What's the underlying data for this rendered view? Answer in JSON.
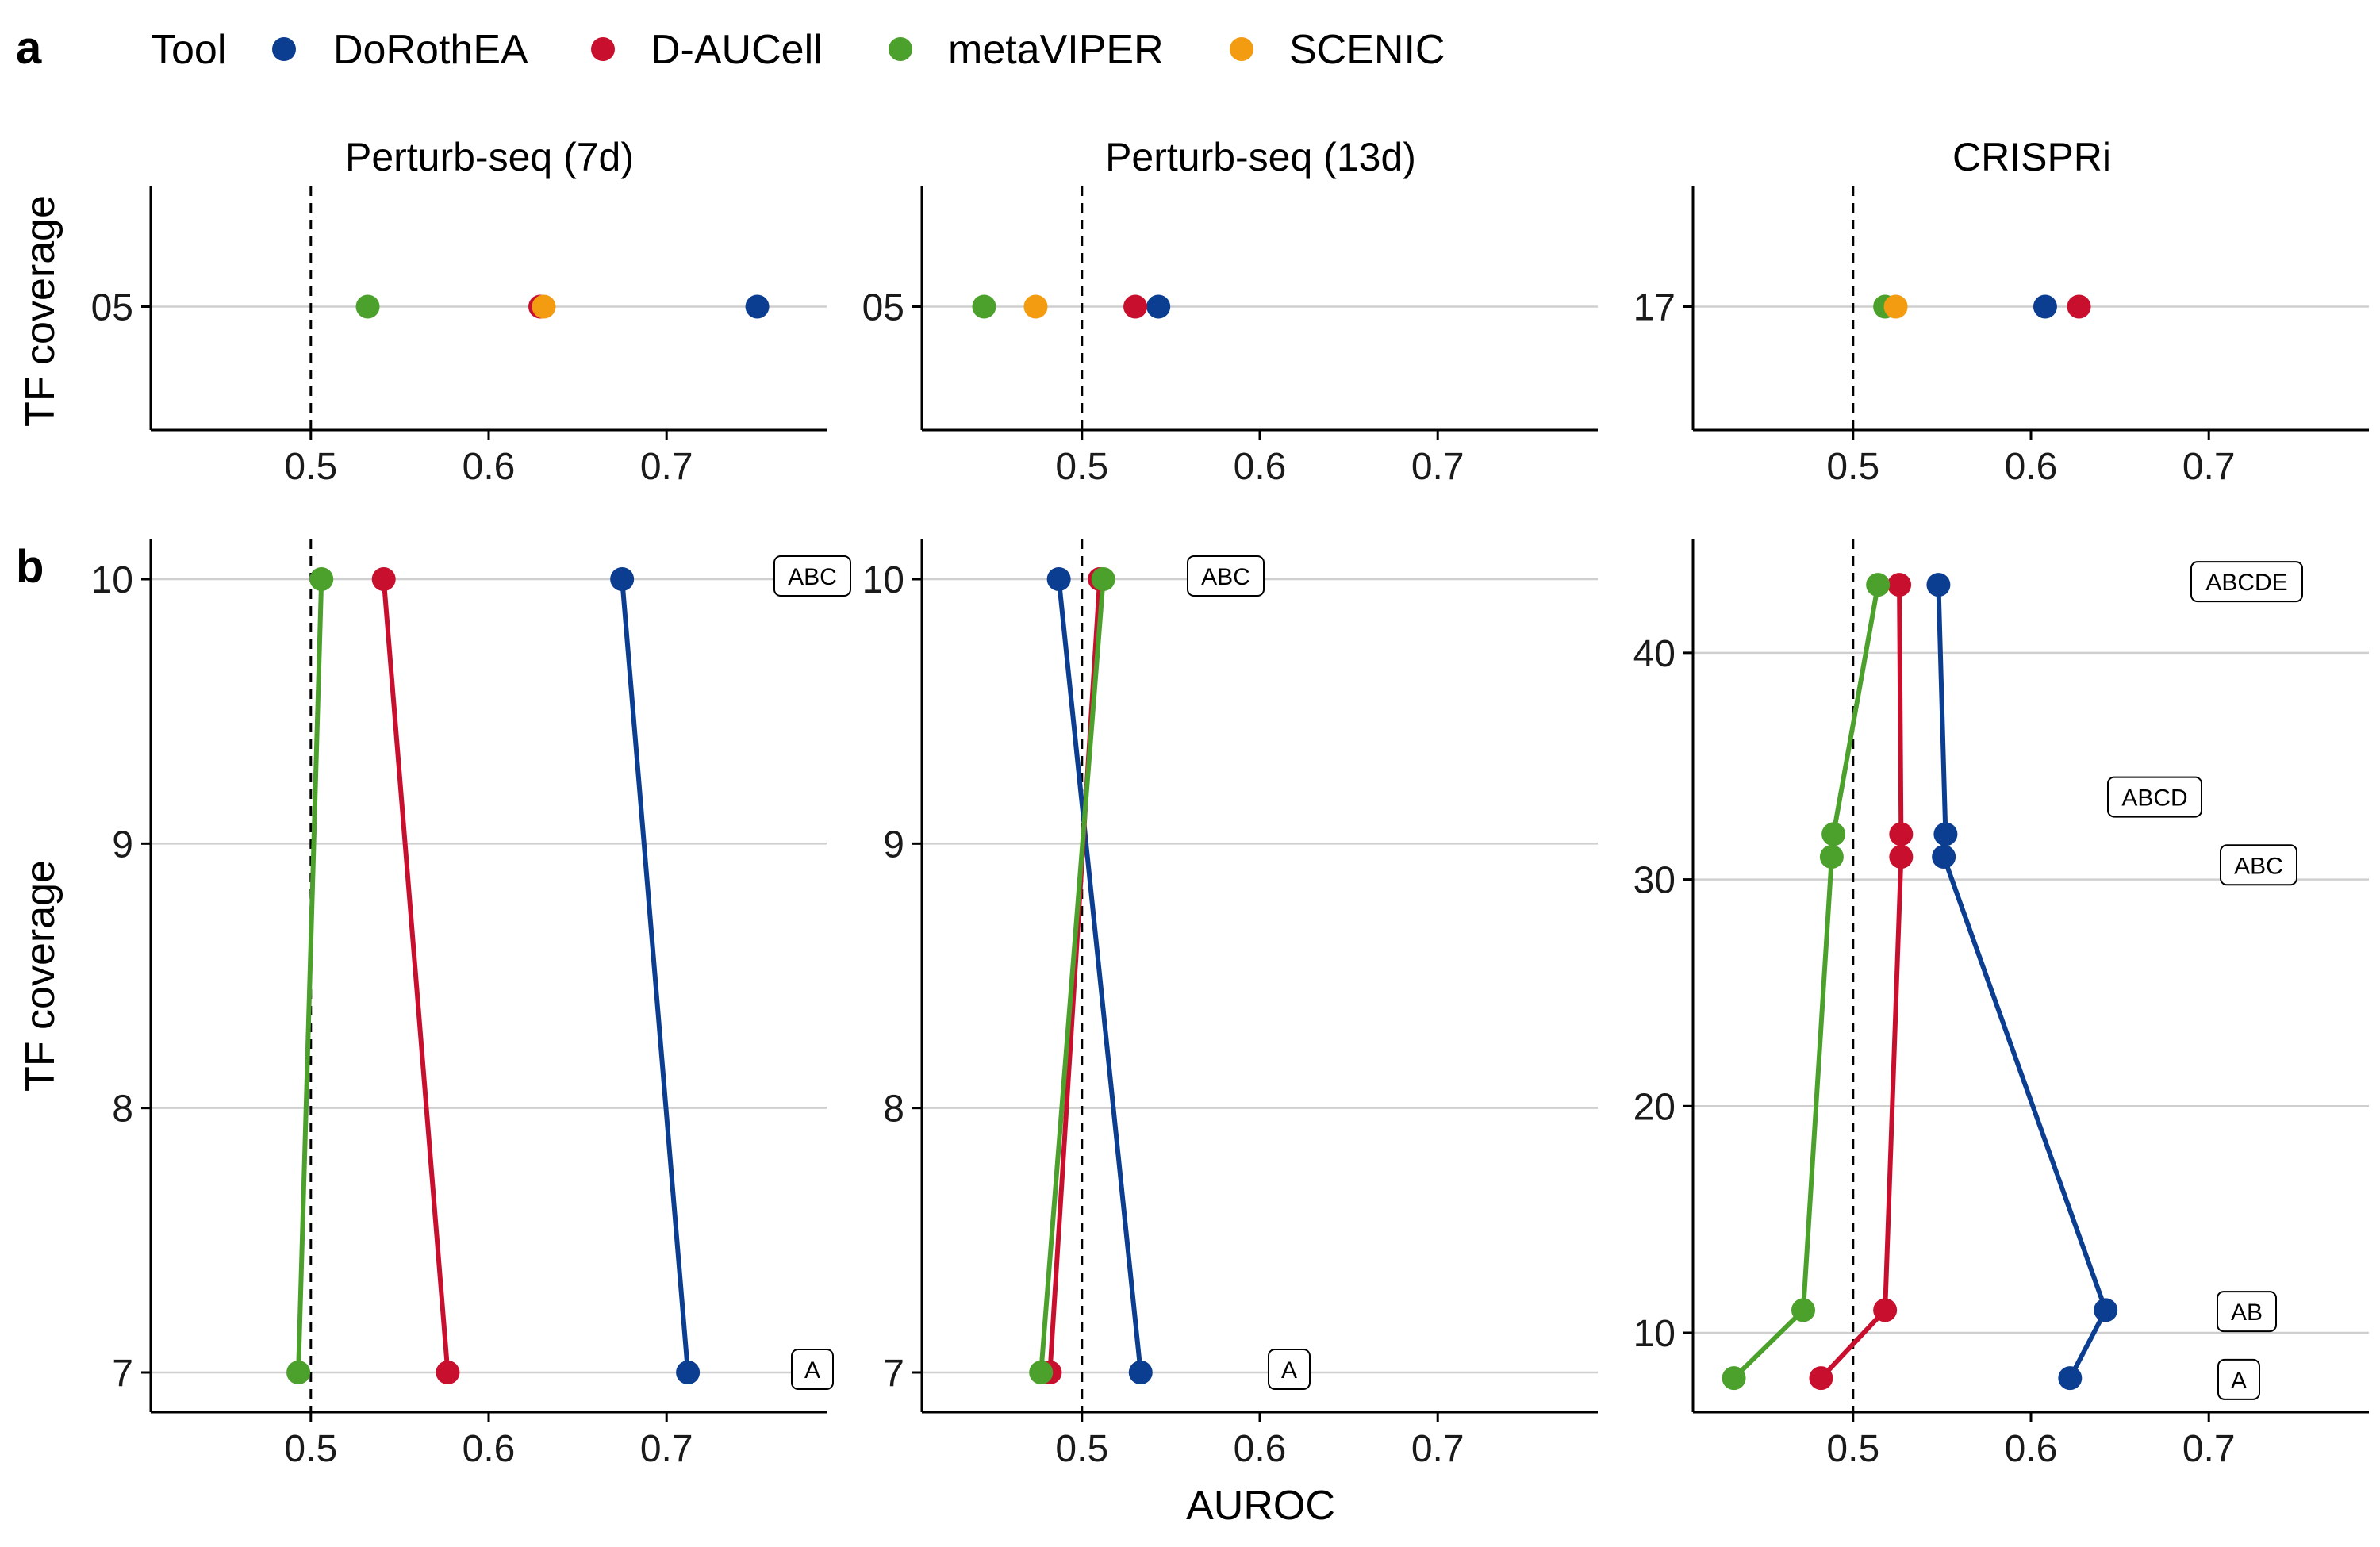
{
  "panel_labels": {
    "a": "a",
    "b": "b"
  },
  "legend": {
    "title": "Tool",
    "items": [
      {
        "name": "DoRothEA",
        "color": "#0B3D91"
      },
      {
        "name": "D-AUCell",
        "color": "#C8102E"
      },
      {
        "name": "metaVIPER",
        "color": "#4CA02C"
      },
      {
        "name": "SCENIC",
        "color": "#F39C12"
      }
    ]
  },
  "axis_titles": {
    "y": "TF coverage",
    "x": "AUROC"
  },
  "chart_data": [
    {
      "type": "scatter",
      "facet": "Perturb-seq (7d)",
      "row": "a",
      "xlabel": "",
      "ylabel": "TF coverage",
      "xlim": [
        0.41,
        0.79
      ],
      "xticks": [
        0.5,
        0.6,
        0.7
      ],
      "yticks": [
        "05"
      ],
      "reference_line_x": 0.5,
      "series": [
        {
          "name": "DoRothEA",
          "points": [
            {
              "y": "05",
              "x": 0.751
            }
          ]
        },
        {
          "name": "D-AUCell",
          "points": [
            {
              "y": "05",
              "x": 0.629
            }
          ]
        },
        {
          "name": "metaVIPER",
          "points": [
            {
              "y": "05",
              "x": 0.532
            }
          ]
        },
        {
          "name": "SCENIC",
          "points": [
            {
              "y": "05",
              "x": 0.631
            }
          ]
        }
      ]
    },
    {
      "type": "scatter",
      "facet": "Perturb-seq (13d)",
      "row": "a",
      "xlabel": "",
      "ylabel": "",
      "xlim": [
        0.41,
        0.79
      ],
      "xticks": [
        0.5,
        0.6,
        0.7
      ],
      "yticks": [
        "05"
      ],
      "reference_line_x": 0.5,
      "series": [
        {
          "name": "DoRothEA",
          "points": [
            {
              "y": "05",
              "x": 0.543
            }
          ]
        },
        {
          "name": "D-AUCell",
          "points": [
            {
              "y": "05",
              "x": 0.53
            }
          ]
        },
        {
          "name": "metaVIPER",
          "points": [
            {
              "y": "05",
              "x": 0.445
            }
          ]
        },
        {
          "name": "SCENIC",
          "points": [
            {
              "y": "05",
              "x": 0.474
            }
          ]
        }
      ]
    },
    {
      "type": "scatter",
      "facet": "CRISPRi",
      "row": "a",
      "xlabel": "",
      "ylabel": "",
      "xlim": [
        0.41,
        0.79
      ],
      "xticks": [
        0.5,
        0.6,
        0.7
      ],
      "yticks": [
        "17"
      ],
      "reference_line_x": 0.5,
      "series": [
        {
          "name": "DoRothEA",
          "points": [
            {
              "y": "17",
              "x": 0.608
            }
          ]
        },
        {
          "name": "D-AUCell",
          "points": [
            {
              "y": "17",
              "x": 0.627
            }
          ]
        },
        {
          "name": "metaVIPER",
          "points": [
            {
              "y": "17",
              "x": 0.518
            }
          ]
        },
        {
          "name": "SCENIC",
          "points": [
            {
              "y": "17",
              "x": 0.524
            }
          ]
        }
      ]
    },
    {
      "type": "line",
      "facet": "Perturb-seq (7d)",
      "row": "b",
      "xlabel": "",
      "ylabel": "TF coverage",
      "xlim": [
        0.41,
        0.79
      ],
      "ylim": [
        6.85,
        10.15
      ],
      "xticks": [
        0.5,
        0.6,
        0.7
      ],
      "yticks": [
        7,
        8,
        9,
        10
      ],
      "reference_line_x": 0.5,
      "series": [
        {
          "name": "DoRothEA",
          "points": [
            {
              "x": 0.712,
              "y": 7
            },
            {
              "x": 0.675,
              "y": 10
            }
          ]
        },
        {
          "name": "D-AUCell",
          "points": [
            {
              "x": 0.577,
              "y": 7
            },
            {
              "x": 0.541,
              "y": 10
            }
          ]
        },
        {
          "name": "metaVIPER",
          "points": [
            {
              "x": 0.493,
              "y": 7
            },
            {
              "x": 0.506,
              "y": 10
            }
          ]
        }
      ],
      "annotations": [
        {
          "text": "ABC",
          "y": 10
        },
        {
          "text": "A",
          "y": 7
        }
      ]
    },
    {
      "type": "line",
      "facet": "Perturb-seq (13d)",
      "row": "b",
      "xlabel": "AUROC",
      "ylabel": "",
      "xlim": [
        0.41,
        0.79
      ],
      "ylim": [
        6.85,
        10.15
      ],
      "xticks": [
        0.5,
        0.6,
        0.7
      ],
      "yticks": [
        7,
        8,
        9,
        10
      ],
      "reference_line_x": 0.5,
      "series": [
        {
          "name": "DoRothEA",
          "points": [
            {
              "x": 0.533,
              "y": 7
            },
            {
              "x": 0.487,
              "y": 10
            }
          ]
        },
        {
          "name": "D-AUCell",
          "points": [
            {
              "x": 0.482,
              "y": 7
            },
            {
              "x": 0.51,
              "y": 10
            }
          ]
        },
        {
          "name": "metaVIPER",
          "points": [
            {
              "x": 0.477,
              "y": 7
            },
            {
              "x": 0.512,
              "y": 10
            }
          ]
        }
      ],
      "annotations": [
        {
          "text": "ABC",
          "y": 10
        },
        {
          "text": "A",
          "y": 7
        }
      ]
    },
    {
      "type": "line",
      "facet": "CRISPRi",
      "row": "b",
      "xlabel": "",
      "ylabel": "",
      "xlim": [
        0.41,
        0.79
      ],
      "ylim": [
        6.5,
        45
      ],
      "xticks": [
        0.5,
        0.6,
        0.7
      ],
      "yticks": [
        10,
        20,
        30,
        40
      ],
      "reference_line_x": 0.5,
      "series": [
        {
          "name": "DoRothEA",
          "points": [
            {
              "x": 0.622,
              "y": 8
            },
            {
              "x": 0.642,
              "y": 11
            },
            {
              "x": 0.551,
              "y": 31
            },
            {
              "x": 0.552,
              "y": 32
            },
            {
              "x": 0.548,
              "y": 43
            }
          ]
        },
        {
          "name": "D-AUCell",
          "points": [
            {
              "x": 0.482,
              "y": 8
            },
            {
              "x": 0.518,
              "y": 11
            },
            {
              "x": 0.527,
              "y": 31
            },
            {
              "x": 0.527,
              "y": 32
            },
            {
              "x": 0.526,
              "y": 43
            }
          ]
        },
        {
          "name": "metaVIPER",
          "points": [
            {
              "x": 0.433,
              "y": 8
            },
            {
              "x": 0.472,
              "y": 11
            },
            {
              "x": 0.488,
              "y": 31
            },
            {
              "x": 0.489,
              "y": 32
            },
            {
              "x": 0.514,
              "y": 43
            }
          ]
        }
      ],
      "annotations": [
        {
          "text": "ABCDE",
          "y": 43
        },
        {
          "text": "ABCD",
          "y": 33.5
        },
        {
          "text": "ABC",
          "y": 30.5
        },
        {
          "text": "AB",
          "y": 10.8
        },
        {
          "text": "A",
          "y": 7.8
        }
      ]
    }
  ]
}
